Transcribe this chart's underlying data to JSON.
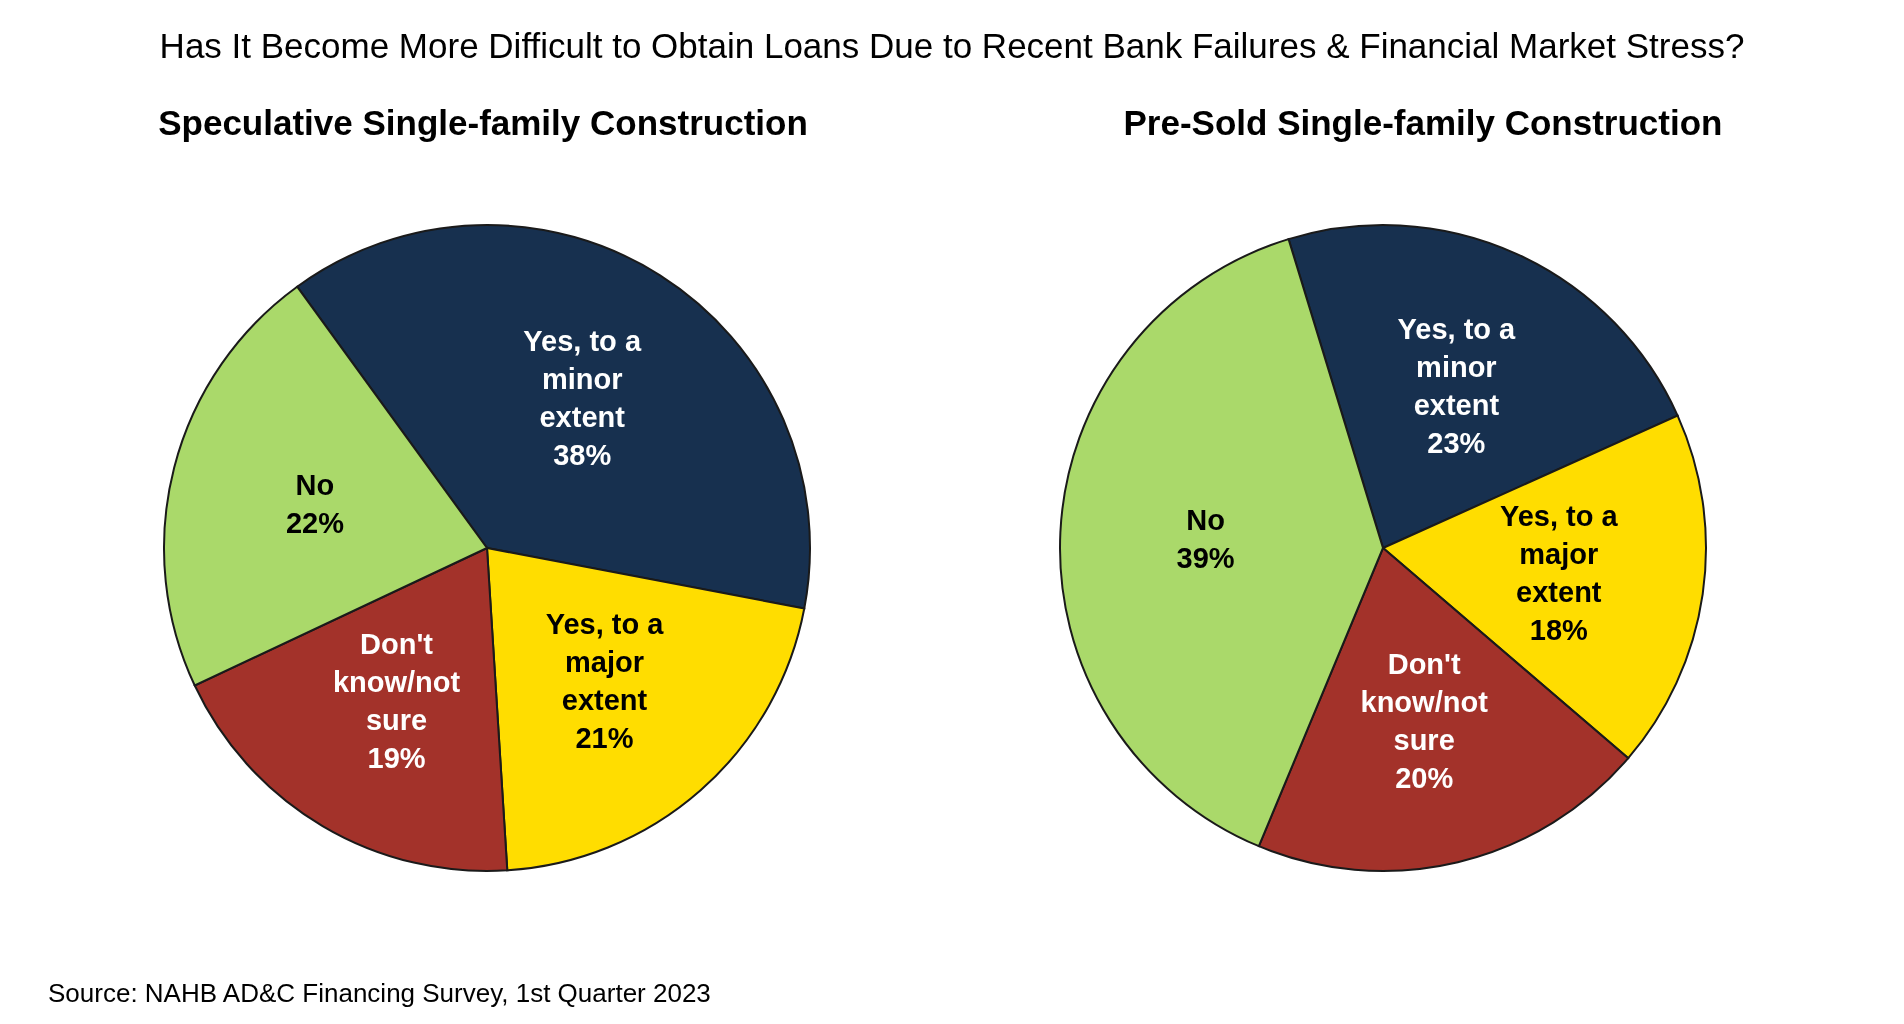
{
  "chart_data": [
    {
      "type": "pie",
      "title": "Has It Become More Difficult to Obtain Loans Due to Recent Bank Failures & Financial Market Stress?",
      "subtitle": "Speculative Single-family Construction",
      "categories": [
        "Yes, to a minor extent",
        "Yes, to a major extent",
        "Don't know/not sure",
        "No"
      ],
      "values": [
        38,
        21,
        19,
        22
      ],
      "colors": [
        "#17304f",
        "#ffdd00",
        "#a3322a",
        "#aad96a"
      ],
      "value_labels": [
        "38%",
        "21%",
        "19%",
        "22%"
      ],
      "legend": false,
      "annotations": [
        "Source: NAHB AD&C Financing Survey, 1st Quarter 2023"
      ]
    },
    {
      "type": "pie",
      "title": "Pre-Sold Single-family Construction",
      "categories": [
        "Yes, to a minor extent",
        "Yes, to a major extent",
        "Don't know/not sure",
        "No"
      ],
      "values": [
        23,
        18,
        20,
        39
      ],
      "colors": [
        "#17304f",
        "#ffdd00",
        "#a3322a",
        "#aad96a"
      ],
      "value_labels": [
        "23%",
        "18%",
        "20%",
        "39%"
      ],
      "legend": false
    }
  ]
}
